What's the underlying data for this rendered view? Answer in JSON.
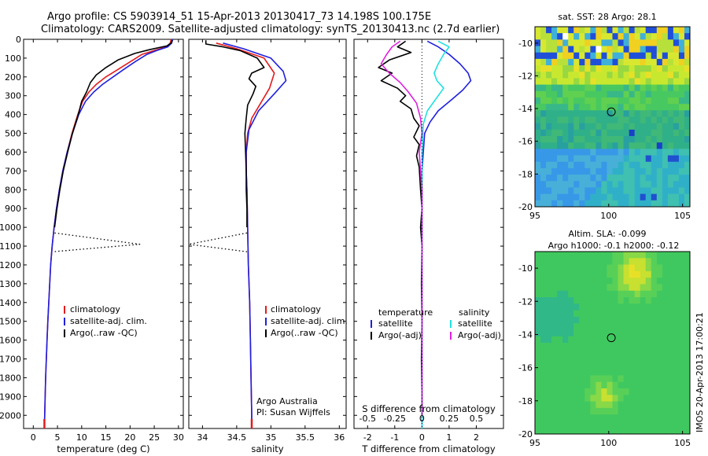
{
  "header": {
    "line1": "Argo profile: CS 5903914_51 15-Apr-2013 20130417_73 14.198S 100.175E",
    "line2": "Climatology: CARS2009. Satellite-adjusted climatology: synTS_20130413.nc (2.7d earlier)"
  },
  "depth_ticks": [
    "0",
    "100",
    "200",
    "300",
    "400",
    "500",
    "600",
    "700",
    "800",
    "900",
    "1000",
    "1100",
    "1200",
    "1300",
    "1400",
    "1500",
    "1600",
    "1700",
    "1800",
    "1900",
    "2000"
  ],
  "colors": {
    "red": "#e41a1c",
    "blue": "#1f1fe0",
    "black": "#000000",
    "cyan": "#22e0e0",
    "magenta": "#e020e0"
  },
  "chart_data": [
    {
      "type": "line",
      "id": "temperature",
      "xlabel": "temperature (deg C)",
      "xlim": [
        -2,
        31
      ],
      "ylim": [
        0,
        2070
      ],
      "xticks": [
        0,
        5,
        10,
        15,
        20,
        25,
        30
      ],
      "xtick_labels": [
        "0",
        "5",
        "10",
        "15",
        "20",
        "25",
        "30"
      ],
      "legend": [
        "climatology",
        "satellite-adj. clim.",
        "Argo(..raw -QC)"
      ],
      "series": [
        {
          "name": "climatology",
          "color": "#e41a1c",
          "points": [
            [
              28.5,
              0
            ],
            [
              28.3,
              20
            ],
            [
              27.5,
              40
            ],
            [
              25,
              60
            ],
            [
              22.5,
              80
            ],
            [
              20,
              120
            ],
            [
              17.5,
              160
            ],
            [
              15,
              200
            ],
            [
              13,
              240
            ],
            [
              11.5,
              280
            ],
            [
              10.2,
              330
            ],
            [
              9.2,
              400
            ],
            [
              8,
              500
            ],
            [
              7,
              600
            ],
            [
              6.1,
              700
            ],
            [
              5.4,
              800
            ],
            [
              4.8,
              900
            ],
            [
              4.3,
              1000
            ],
            [
              3.9,
              1100
            ],
            [
              3.6,
              1200
            ],
            [
              3.4,
              1300
            ],
            [
              3.2,
              1400
            ],
            [
              3,
              1500
            ],
            [
              2.85,
              1600
            ],
            [
              2.7,
              1700
            ],
            [
              2.55,
              1800
            ],
            [
              2.45,
              1900
            ],
            [
              2.35,
              2000
            ],
            [
              2.3,
              2070
            ]
          ]
        },
        {
          "name": "satellite-adj. clim.",
          "color": "#1f1fe0",
          "points": [
            [
              28.8,
              0
            ],
            [
              28.6,
              20
            ],
            [
              27.8,
              40
            ],
            [
              25.5,
              60
            ],
            [
              23.5,
              80
            ],
            [
              21,
              120
            ],
            [
              18.7,
              160
            ],
            [
              16.5,
              200
            ],
            [
              14.3,
              240
            ],
            [
              12.5,
              280
            ],
            [
              10.8,
              330
            ],
            [
              9.4,
              400
            ],
            [
              8.1,
              500
            ],
            [
              7,
              600
            ],
            [
              6.1,
              700
            ],
            [
              5.4,
              800
            ],
            [
              4.8,
              900
            ],
            [
              4.3,
              1000
            ],
            [
              3.9,
              1100
            ],
            [
              3.6,
              1200
            ],
            [
              3.4,
              1300
            ],
            [
              3.2,
              1400
            ],
            [
              3,
              1500
            ],
            [
              2.85,
              1600
            ],
            [
              2.7,
              1700
            ],
            [
              2.55,
              1800
            ],
            [
              2.45,
              1900
            ],
            [
              2.35,
              2000
            ],
            [
              2.3,
              2070
            ]
          ]
        },
        {
          "name": "Argo(..raw -QC)",
          "color": "#000000",
          "points": [
            [
              28.7,
              5
            ],
            [
              28.5,
              20
            ],
            [
              27.6,
              35
            ],
            [
              24,
              55
            ],
            [
              21,
              75
            ],
            [
              17.5,
              110
            ],
            [
              15,
              150
            ],
            [
              13,
              190
            ],
            [
              11.8,
              230
            ],
            [
              11,
              280
            ],
            [
              10,
              330
            ],
            [
              9.3,
              400
            ],
            [
              8.1,
              500
            ],
            [
              7.1,
              600
            ],
            [
              6.2,
              700
            ],
            [
              5.5,
              800
            ],
            [
              4.9,
              900
            ],
            [
              4.4,
              1000
            ]
          ]
        },
        {
          "name": "Argo(..raw -QC)",
          "color": "#000000",
          "dotted": true,
          "points": [
            [
              4.4,
              1030
            ],
            [
              22,
              1090
            ],
            [
              4,
              1130
            ]
          ]
        }
      ]
    },
    {
      "type": "line",
      "id": "salinity",
      "xlabel": "salinity",
      "xlim": [
        33.8,
        36.1
      ],
      "ylim": [
        0,
        2070
      ],
      "xticks": [
        34,
        34.5,
        35,
        35.5,
        36
      ],
      "xtick_labels": [
        "34",
        "34.5",
        "35",
        "35.5",
        "36"
      ],
      "legend": [
        "climatology",
        "satellite-adj. clim.",
        "Argo(..raw -QC)"
      ],
      "annotations": [
        "Argo Australia",
        "PI: Susan Wijffels"
      ],
      "series": [
        {
          "name": "climatology",
          "color": "#e41a1c",
          "points": [
            [
              34.2,
              20
            ],
            [
              34.5,
              50
            ],
            [
              34.9,
              100
            ],
            [
              35.05,
              180
            ],
            [
              34.98,
              260
            ],
            [
              34.85,
              340
            ],
            [
              34.72,
              420
            ],
            [
              34.66,
              500
            ],
            [
              34.64,
              600
            ],
            [
              34.64,
              700
            ],
            [
              34.65,
              800
            ],
            [
              34.66,
              1000
            ],
            [
              34.67,
              1200
            ],
            [
              34.69,
              1400
            ],
            [
              34.7,
              1600
            ],
            [
              34.71,
              1800
            ],
            [
              34.72,
              2000
            ],
            [
              34.72,
              2070
            ]
          ]
        },
        {
          "name": "satellite-adj. clim.",
          "color": "#1f1fe0",
          "points": [
            [
              34.3,
              20
            ],
            [
              34.6,
              50
            ],
            [
              35.0,
              100
            ],
            [
              35.18,
              170
            ],
            [
              35.22,
              220
            ],
            [
              35.05,
              290
            ],
            [
              34.82,
              380
            ],
            [
              34.68,
              480
            ],
            [
              34.64,
              600
            ],
            [
              34.64,
              700
            ],
            [
              34.65,
              800
            ],
            [
              34.66,
              1000
            ],
            [
              34.67,
              1200
            ],
            [
              34.69,
              1400
            ],
            [
              34.7,
              1600
            ],
            [
              34.71,
              1800
            ],
            [
              34.72,
              2000
            ],
            [
              34.72,
              2070
            ]
          ]
        },
        {
          "name": "Argo(..raw -QC)",
          "color": "#000000",
          "points": [
            [
              34.05,
              5
            ],
            [
              34.05,
              25
            ],
            [
              34.3,
              40
            ],
            [
              34.55,
              60
            ],
            [
              34.8,
              100
            ],
            [
              34.9,
              150
            ],
            [
              34.72,
              180
            ],
            [
              34.68,
              210
            ],
            [
              34.78,
              250
            ],
            [
              34.74,
              290
            ],
            [
              34.66,
              350
            ],
            [
              34.64,
              420
            ],
            [
              34.62,
              500
            ],
            [
              34.63,
              600
            ],
            [
              34.64,
              700
            ],
            [
              34.64,
              800
            ],
            [
              34.65,
              900
            ],
            [
              34.65,
              1000
            ]
          ]
        },
        {
          "name": "Argo(..raw -QC)",
          "color": "#000000",
          "dotted": true,
          "points": [
            [
              34.65,
              1030
            ],
            [
              33.8,
              1090
            ],
            [
              34.65,
              1130
            ]
          ]
        }
      ]
    },
    {
      "type": "line",
      "id": "differences",
      "xlabel": "T difference from climatology",
      "xlabel_top": "S difference from climatology",
      "xlim": [
        -2.5,
        3
      ],
      "ylim": [
        0,
        2070
      ],
      "xticks": [
        -2,
        -1,
        0,
        1,
        2
      ],
      "xtick_labels": [
        "-2",
        "-1",
        "0",
        "1",
        "2"
      ],
      "sticks_labels": [
        "-0.5",
        "-0.25",
        "0",
        "0.25",
        "0.5"
      ],
      "legend_headers": [
        "temperature",
        "salinity"
      ],
      "legend": [
        "satellite",
        "Argo(-adj)",
        "satellite",
        "Argo(-adj)"
      ],
      "series": [
        {
          "name": "satellite",
          "color": "#1f1fe0",
          "points": [
            [
              0.2,
              10
            ],
            [
              0.6,
              40
            ],
            [
              1,
              80
            ],
            [
              1.4,
              130
            ],
            [
              1.7,
              180
            ],
            [
              1.8,
              220
            ],
            [
              1.5,
              270
            ],
            [
              1.1,
              320
            ],
            [
              0.6,
              380
            ],
            [
              0.3,
              440
            ],
            [
              0.1,
              500
            ],
            [
              0.05,
              600
            ],
            [
              0,
              700
            ],
            [
              0,
              2070
            ]
          ]
        },
        {
          "name": "Argo(-adj)",
          "color": "#000000",
          "points": [
            [
              -0.6,
              10
            ],
            [
              -0.9,
              40
            ],
            [
              -0.4,
              70
            ],
            [
              -1.2,
              110
            ],
            [
              -1.6,
              150
            ],
            [
              -1.1,
              180
            ],
            [
              -1.5,
              220
            ],
            [
              -0.9,
              260
            ],
            [
              -0.6,
              300
            ],
            [
              -0.8,
              330
            ],
            [
              -0.4,
              370
            ],
            [
              -0.3,
              420
            ],
            [
              -0.1,
              460
            ],
            [
              -0.3,
              520
            ],
            [
              -0.1,
              560
            ],
            [
              -0.2,
              620
            ],
            [
              -0.1,
              680
            ],
            [
              -0.05,
              800
            ],
            [
              0,
              900
            ],
            [
              -0.05,
              1000
            ],
            [
              0,
              1100
            ],
            [
              -0.02,
              1300
            ],
            [
              0,
              1500
            ],
            [
              -0.02,
              1700
            ],
            [
              0,
              1900
            ],
            [
              0,
              2000
            ]
          ]
        },
        {
          "name": "satellite",
          "color": "#22e0e0",
          "points": [
            [
              0.6,
              10
            ],
            [
              1,
              40
            ],
            [
              0.8,
              80
            ],
            [
              0.6,
              130
            ],
            [
              0.45,
              180
            ],
            [
              0.55,
              220
            ],
            [
              0.8,
              260
            ],
            [
              0.5,
              320
            ],
            [
              0.2,
              380
            ],
            [
              0.05,
              450
            ],
            [
              0,
              600
            ],
            [
              0,
              2070
            ]
          ]
        },
        {
          "name": "Argo(-adj)",
          "color": "#e020e0",
          "points": [
            [
              -0.8,
              10
            ],
            [
              -1.1,
              40
            ],
            [
              -1.3,
              80
            ],
            [
              -1.5,
              130
            ],
            [
              -1.2,
              180
            ],
            [
              -0.8,
              230
            ],
            [
              -0.5,
              280
            ],
            [
              -0.2,
              340
            ],
            [
              -0.05,
              420
            ],
            [
              0,
              500
            ],
            [
              -0.1,
              600
            ],
            [
              -0.05,
              700
            ],
            [
              0,
              800
            ],
            [
              0,
              2000
            ]
          ]
        }
      ]
    },
    {
      "type": "heatmap",
      "id": "sst-map",
      "title": "sat. SST: 28 Argo: 28.1",
      "xlim": [
        95,
        105.5
      ],
      "ylim": [
        -20,
        -9
      ],
      "xticks": [
        95,
        100,
        105
      ],
      "yticks": [
        -10,
        -12,
        -14,
        -16,
        -18,
        -20
      ],
      "argo_position": [
        100.175,
        -14.198
      ]
    },
    {
      "type": "heatmap",
      "id": "sla-map",
      "title": "Altim. SLA: -0.099",
      "subtitle": "Argo h1000: -0.1 h2000: -0.12",
      "xlim": [
        95,
        105.5
      ],
      "ylim": [
        -20,
        -9
      ],
      "xticks": [
        95,
        100,
        105
      ],
      "yticks": [
        -10,
        -12,
        -14,
        -16,
        -18,
        -20
      ],
      "argo_position": [
        100.175,
        -14.198
      ]
    }
  ],
  "side_label": "IMOS 20-Apr-2013 17:00:21"
}
